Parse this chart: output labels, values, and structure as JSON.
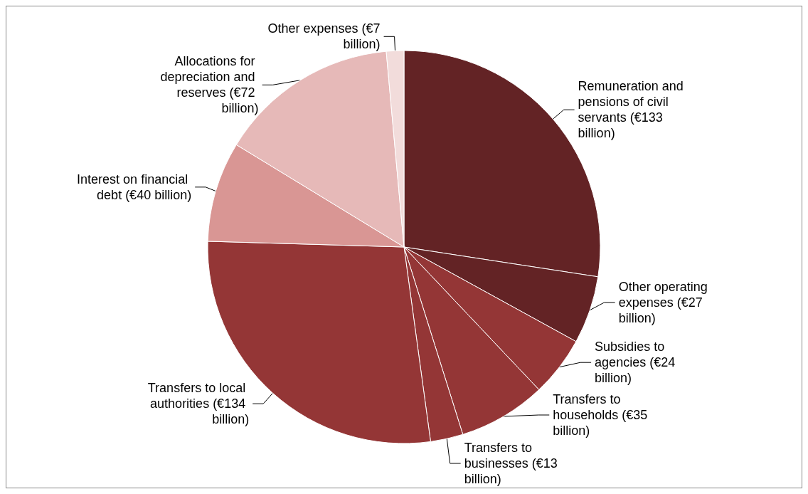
{
  "chart_data": {
    "type": "pie",
    "categories": [
      "Remuneration and pensions of civil servants",
      "Other operating expenses",
      "Subsidies to agencies",
      "Transfers to households",
      "Transfers to businesses",
      "Transfers to local authorities",
      "Interest on financial debt",
      "Allocations for depreciation and reserves",
      "Other expenses"
    ],
    "values": [
      133,
      27,
      24,
      35,
      13,
      134,
      40,
      72,
      7
    ],
    "value_labels": [
      "(€133 billion)",
      "(€27 billion)",
      "(€24 billion)",
      "(€35 billion)",
      "(€13 billion)",
      "(€134 billion)",
      "(€40 billion)",
      "(€72 billion)",
      "(€7 billion)"
    ],
    "colors": [
      "#632325",
      "#632325",
      "#943636",
      "#943636",
      "#943636",
      "#943636",
      "#d99694",
      "#e6b9b8",
      "#f2dcdb"
    ],
    "legend": false
  }
}
